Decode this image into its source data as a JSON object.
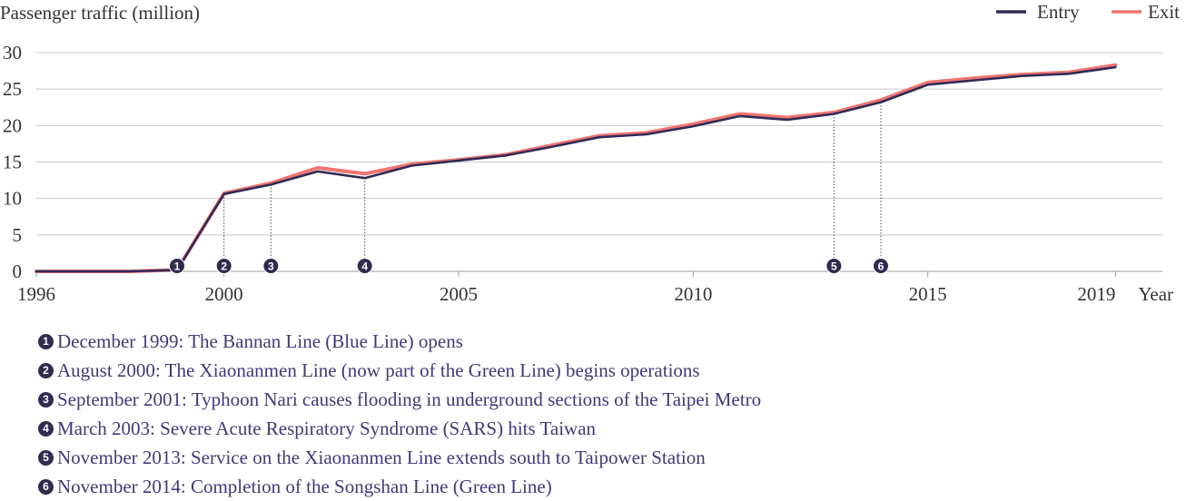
{
  "chart_data": {
    "type": "line",
    "ylabel": "Passenger traffic (million)",
    "xlabel": "Year",
    "x": [
      1996,
      1997,
      1998,
      1999,
      2000,
      2001,
      2002,
      2003,
      2004,
      2005,
      2006,
      2007,
      2008,
      2009,
      2010,
      2011,
      2012,
      2013,
      2014,
      2015,
      2016,
      2017,
      2018,
      2019
    ],
    "series": [
      {
        "name": "Entry",
        "color": "#2f2b58",
        "values": [
          0,
          0,
          0,
          0.2,
          10.6,
          11.9,
          13.7,
          12.8,
          14.5,
          15.2,
          15.9,
          17.1,
          18.4,
          18.8,
          19.9,
          21.3,
          20.8,
          21.6,
          23.2,
          25.6,
          26.2,
          26.8,
          27.1,
          28.0
        ]
      },
      {
        "name": "Exit",
        "color": "#ef7470",
        "values": [
          0,
          0,
          0,
          0.2,
          10.7,
          12.1,
          14.2,
          13.4,
          14.7,
          15.3,
          16.0,
          17.3,
          18.6,
          19.0,
          20.2,
          21.6,
          21.1,
          21.8,
          23.5,
          25.9,
          26.5,
          27.0,
          27.3,
          28.3
        ]
      }
    ],
    "xticks": [
      "1996",
      "2000",
      "2005",
      "2010",
      "2015",
      "2019"
    ],
    "xtick_values": [
      1996,
      2000,
      2005,
      2010,
      2015,
      2019
    ],
    "xaxis_unit": "Year",
    "yticks": [
      0,
      5,
      10,
      15,
      20,
      25,
      30
    ],
    "ylim": [
      0,
      30
    ],
    "xlim": [
      1996,
      2020
    ],
    "grid": true,
    "legend_position": "top-right",
    "annotations": [
      {
        "id": "1",
        "symbol": "❶",
        "x": 1999,
        "text": "December 1999: The Bannan Line (Blue Line) opens"
      },
      {
        "id": "2",
        "symbol": "❷",
        "x": 2000,
        "text": "August 2000: The Xiaonanmen Line (now part of the Green Line) begins operations"
      },
      {
        "id": "3",
        "symbol": "❸",
        "x": 2001,
        "text": "September 2001: Typhoon Nari causes flooding in underground sections of the Taipei Metro"
      },
      {
        "id": "4",
        "symbol": "❹",
        "x": 2003,
        "text": "March 2003: Severe Acute Respiratory Syndrome (SARS) hits Taiwan"
      },
      {
        "id": "5",
        "symbol": "❺",
        "x": 2013,
        "text": "November 2013: Service on the Xiaonanmen Line extends south to Taipower Station"
      },
      {
        "id": "6",
        "symbol": "❻",
        "x": 2014,
        "text": "November 2014: Completion of the Songshan Line (Green Line)"
      }
    ],
    "marker_color": "#2e2c4f"
  }
}
